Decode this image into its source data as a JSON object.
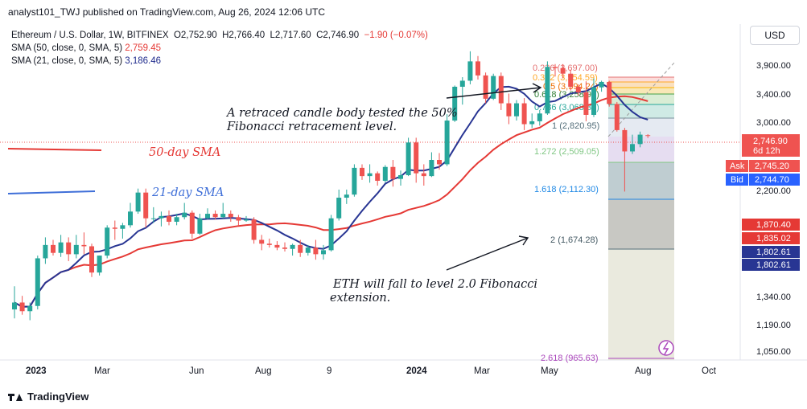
{
  "header": {
    "publisher_line": "analyst101_TWJ published on TradingView.com, Aug 26, 2024 12:06 UTC"
  },
  "legend": {
    "symbol": "Ethereum / U.S. Dollar, 1W, BITFINEX",
    "open": "O2,752.90",
    "high": "H2,766.40",
    "low": "L2,717.60",
    "close": "C2,746.90",
    "change": "−1.90 (−0.07%)",
    "sma50_label": "SMA (50, close, 0, SMA, 5)",
    "sma50_value": "2,759.45",
    "sma21_label": "SMA (21, close, 0, SMA, 5)",
    "sma21_value": "3,186.46"
  },
  "currency_button": "USD",
  "footer": {
    "brand": "TradingView"
  },
  "colors": {
    "up": "#26a69a",
    "down": "#ef5350",
    "sma50": "#e53935",
    "sma21": "#283593",
    "annotation": "#131722"
  },
  "chart_data": {
    "type": "candlestick",
    "price_axis": {
      "scale": "log",
      "range": [
        990,
        4150
      ],
      "ticks": [
        "3,900.00",
        "3,400.00",
        "3,000.00",
        "2,200.00",
        "1,340.00",
        "1,190.00",
        "1,050.00"
      ]
    },
    "time_axis": {
      "labels": [
        "2023",
        "Mar",
        "Jun",
        "Aug",
        "9",
        "2024",
        "Mar",
        "May",
        "Aug",
        "Oct"
      ]
    },
    "price_labels": {
      "last": {
        "value": "2,746.90",
        "sub": "6d 12h"
      },
      "ask": {
        "tag": "Ask",
        "value": "2,745.20"
      },
      "bid": {
        "tag": "Bid",
        "value": "2,744.70"
      },
      "red_a": "1,870.40",
      "red_b": "1,835.02",
      "blue_a": "1,802.61",
      "blue_b": "1,802.61"
    },
    "fibonacci": [
      {
        "ratio": "0.236",
        "price": "(3,697.00)"
      },
      {
        "ratio": "0.382",
        "price": "(3,554.59)"
      },
      {
        "ratio": "0.5",
        "price": "(3,394.24)"
      },
      {
        "ratio": "0.618",
        "price": "(3,258.98)"
      },
      {
        "ratio": "0.786",
        "price": "(3,068.33)"
      },
      {
        "ratio": "1",
        "price": "(2,820.95)"
      },
      {
        "ratio": "1.272",
        "price": "(2,509.05)"
      },
      {
        "ratio": "1.618",
        "price": "(2,112.30)"
      },
      {
        "ratio": "2",
        "price": "(1,674.28)"
      },
      {
        "ratio": "2.618",
        "price": "(965.63)"
      }
    ],
    "annotations": {
      "sma50_tag": "50-day SMA",
      "sma21_tag": "21-day SMA",
      "note1_line1": "A retraced candle body tested the 50%",
      "note1_line2": "Fibonacci retracement level.",
      "note2_line1": "ETH  will fall to level 2.0 Fibonacci",
      "note2_line2": "extension."
    },
    "candles": [
      [
        1210,
        1350,
        1160,
        1250
      ],
      [
        1250,
        1290,
        1180,
        1200
      ],
      [
        1200,
        1250,
        1150,
        1230
      ],
      [
        1230,
        1560,
        1210,
        1540
      ],
      [
        1540,
        1700,
        1500,
        1640
      ],
      [
        1640,
        1680,
        1560,
        1580
      ],
      [
        1580,
        1720,
        1550,
        1660
      ],
      [
        1660,
        1700,
        1520,
        1570
      ],
      [
        1570,
        1720,
        1540,
        1640
      ],
      [
        1640,
        1740,
        1570,
        1630
      ],
      [
        1630,
        1650,
        1410,
        1440
      ],
      [
        1440,
        1560,
        1420,
        1560
      ],
      [
        1560,
        1800,
        1540,
        1780
      ],
      [
        1780,
        1840,
        1680,
        1770
      ],
      [
        1770,
        1820,
        1690,
        1800
      ],
      [
        1800,
        2000,
        1780,
        1920
      ],
      [
        1920,
        2140,
        1900,
        2100
      ],
      [
        2100,
        2140,
        1780,
        1860
      ],
      [
        1860,
        1960,
        1820,
        1860
      ],
      [
        1860,
        1920,
        1790,
        1880
      ],
      [
        1880,
        1930,
        1800,
        1830
      ],
      [
        1830,
        1900,
        1800,
        1870
      ],
      [
        1870,
        2000,
        1850,
        1910
      ],
      [
        1910,
        1930,
        1690,
        1730
      ],
      [
        1730,
        1900,
        1720,
        1860
      ],
      [
        1860,
        1950,
        1850,
        1900
      ],
      [
        1900,
        1930,
        1850,
        1870
      ],
      [
        1870,
        2000,
        1860,
        1900
      ],
      [
        1900,
        1930,
        1830,
        1870
      ],
      [
        1870,
        1890,
        1800,
        1840
      ],
      [
        1840,
        1880,
        1830,
        1850
      ],
      [
        1850,
        1870,
        1650,
        1680
      ],
      [
        1680,
        1720,
        1600,
        1650
      ],
      [
        1650,
        1690,
        1620,
        1640
      ],
      [
        1640,
        1670,
        1600,
        1620
      ],
      [
        1620,
        1660,
        1590,
        1610
      ],
      [
        1610,
        1650,
        1560,
        1640
      ],
      [
        1640,
        1680,
        1550,
        1580
      ],
      [
        1580,
        1640,
        1560,
        1620
      ],
      [
        1620,
        1680,
        1530,
        1570
      ],
      [
        1570,
        1640,
        1530,
        1600
      ],
      [
        1600,
        1890,
        1590,
        1860
      ],
      [
        1860,
        2130,
        1840,
        2050
      ],
      [
        2050,
        2130,
        1990,
        2080
      ],
      [
        2080,
        2400,
        2060,
        2360
      ],
      [
        2360,
        2400,
        2230,
        2270
      ],
      [
        2270,
        2400,
        2200,
        2300
      ],
      [
        2300,
        2320,
        2170,
        2220
      ],
      [
        2220,
        2390,
        2200,
        2370
      ],
      [
        2370,
        2450,
        2160,
        2240
      ],
      [
        2240,
        2330,
        2170,
        2280
      ],
      [
        2280,
        2720,
        2270,
        2660
      ],
      [
        2660,
        2720,
        2200,
        2300
      ],
      [
        2300,
        2400,
        2170,
        2270
      ],
      [
        2270,
        2540,
        2260,
        2450
      ],
      [
        2450,
        2530,
        2340,
        2400
      ],
      [
        2400,
        3040,
        2380,
        2950
      ],
      [
        2950,
        3480,
        2930,
        3460
      ],
      [
        3460,
        3620,
        3180,
        3560
      ],
      [
        3560,
        4090,
        3500,
        3900
      ],
      [
        3900,
        4000,
        3580,
        3650
      ],
      [
        3650,
        3700,
        3200,
        3270
      ],
      [
        3270,
        3680,
        3250,
        3640
      ],
      [
        3640,
        3700,
        3100,
        3200
      ],
      [
        3200,
        3350,
        2900,
        3010
      ],
      [
        3010,
        3250,
        2950,
        3200
      ],
      [
        3200,
        3280,
        2820,
        2900
      ],
      [
        2900,
        3050,
        2850,
        2940
      ],
      [
        2940,
        3100,
        2880,
        3050
      ],
      [
        3050,
        3900,
        3030,
        3800
      ],
      [
        3800,
        3850,
        3630,
        3780
      ],
      [
        3780,
        3850,
        3600,
        3680
      ],
      [
        3680,
        3750,
        3400,
        3460
      ],
      [
        3460,
        3500,
        3320,
        3370
      ],
      [
        3370,
        3550,
        2940,
        3030
      ],
      [
        3030,
        3600,
        3000,
        3450
      ],
      [
        3450,
        3560,
        3380,
        3540
      ],
      [
        3540,
        3560,
        3150,
        3190
      ],
      [
        3190,
        3220,
        2800,
        2820
      ],
      [
        2820,
        2850,
        2110,
        2550
      ],
      [
        2550,
        2760,
        2520,
        2640
      ],
      [
        2640,
        2800,
        2600,
        2760
      ],
      [
        2752.9,
        2766.4,
        2717.6,
        2746.9
      ]
    ]
  }
}
